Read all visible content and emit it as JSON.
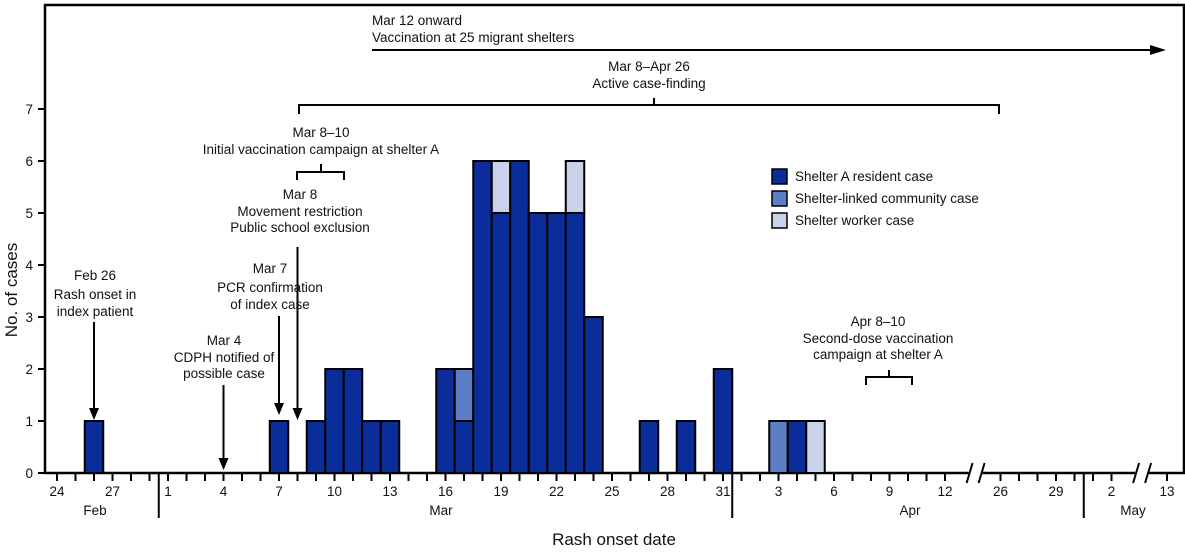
{
  "chart_data": {
    "type": "bar",
    "stacked": true,
    "xlabel": "Rash onset date",
    "ylabel": "No. of cases",
    "ylim": [
      0,
      7
    ],
    "y_ticks": [
      "0",
      "1",
      "2",
      "3",
      "4",
      "5",
      "6",
      "7"
    ],
    "grid": false,
    "legend_placement": "upper-right",
    "x_tick_labels": [
      {
        "date": "Feb 24",
        "label": "24"
      },
      {
        "date": "Feb 27",
        "label": "27"
      },
      {
        "date": "Mar 1",
        "label": "1"
      },
      {
        "date": "Mar 4",
        "label": "4"
      },
      {
        "date": "Mar 7",
        "label": "7"
      },
      {
        "date": "Mar 10",
        "label": "10"
      },
      {
        "date": "Mar 13",
        "label": "13"
      },
      {
        "date": "Mar 16",
        "label": "16"
      },
      {
        "date": "Mar 19",
        "label": "19"
      },
      {
        "date": "Mar 22",
        "label": "22"
      },
      {
        "date": "Mar 25",
        "label": "25"
      },
      {
        "date": "Mar 28",
        "label": "28"
      },
      {
        "date": "Mar 31",
        "label": "31"
      },
      {
        "date": "Apr 3",
        "label": "3"
      },
      {
        "date": "Apr 6",
        "label": "6"
      },
      {
        "date": "Apr 9",
        "label": "9"
      },
      {
        "date": "Apr 12",
        "label": "12"
      },
      {
        "date": "Apr 26",
        "label": "26"
      },
      {
        "date": "Apr 29",
        "label": "29"
      },
      {
        "date": "May 2",
        "label": "2"
      },
      {
        "date": "May 13",
        "label": "13"
      }
    ],
    "months": [
      "Feb",
      "Mar",
      "Apr",
      "May"
    ],
    "axis_breaks": [
      "Apr 13–Apr 26",
      "May 2–May 13"
    ],
    "categories": [
      "Feb 26",
      "Mar 7",
      "Mar 9",
      "Mar 10",
      "Mar 11",
      "Mar 12",
      "Mar 13",
      "Mar 16",
      "Mar 17",
      "Mar 18",
      "Mar 19",
      "Mar 20",
      "Mar 21",
      "Mar 22",
      "Mar 23",
      "Mar 24",
      "Mar 27",
      "Mar 29",
      "Mar 31",
      "Apr 3",
      "Apr 4",
      "Apr 5"
    ],
    "series": [
      {
        "name": "Shelter A resident case",
        "color": "#0a2d9a",
        "values": [
          1,
          1,
          1,
          2,
          2,
          1,
          1,
          2,
          1,
          6,
          5,
          6,
          5,
          5,
          5,
          3,
          1,
          1,
          2,
          0,
          1,
          0
        ]
      },
      {
        "name": "Shelter-linked community case",
        "color": "#5b7ec6",
        "values": [
          0,
          0,
          0,
          0,
          0,
          0,
          0,
          0,
          1,
          0,
          0,
          0,
          0,
          0,
          0,
          0,
          0,
          0,
          0,
          1,
          0,
          0
        ]
      },
      {
        "name": "Shelter worker case",
        "color": "#c8d2ea",
        "values": [
          0,
          0,
          0,
          0,
          0,
          0,
          0,
          0,
          0,
          0,
          1,
          0,
          0,
          0,
          1,
          0,
          0,
          0,
          0,
          0,
          0,
          1
        ]
      }
    ],
    "annotations": {
      "shelters": {
        "lines": [
          "Mar 12 onward",
          "Vaccination at 25 migrant shelters"
        ]
      },
      "case_finding": {
        "lines": [
          "Mar 8–Apr 26",
          "Active case-finding"
        ]
      },
      "initial_vax": {
        "lines": [
          "Mar 8–10",
          "Initial vaccination campaign at shelter A"
        ]
      },
      "restriction": {
        "lines": [
          "Mar 8",
          "Movement restriction",
          "Public school exclusion"
        ]
      },
      "pcr": {
        "lines": [
          "Mar 7",
          "PCR confirmation",
          "of index case"
        ]
      },
      "onset": {
        "lines": [
          "Feb 26",
          "Rash onset in",
          "index patient"
        ]
      },
      "cdph": {
        "lines": [
          "Mar 4",
          "CDPH notified of",
          "possible case"
        ]
      },
      "second_dose": {
        "lines": [
          "Apr 8–10",
          "Second-dose vaccination",
          "campaign at shelter A"
        ]
      }
    }
  }
}
